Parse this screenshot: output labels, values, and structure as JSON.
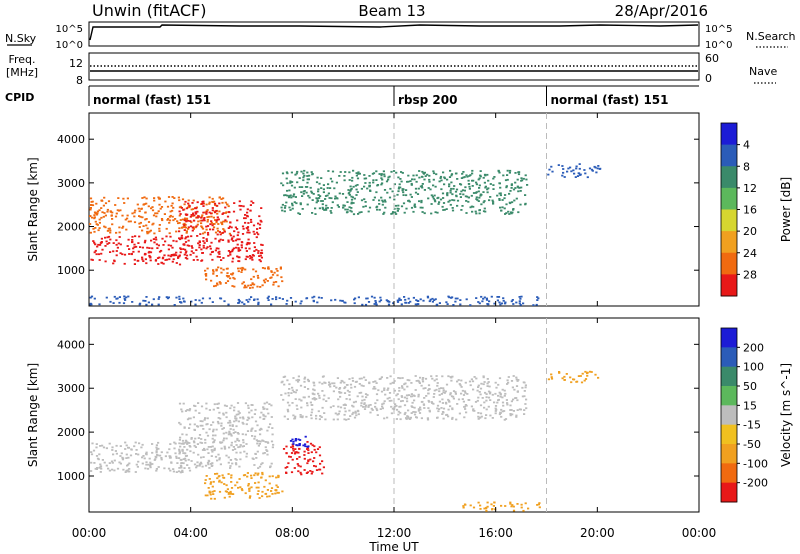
{
  "header": {
    "station": "Unwin (fitACF)",
    "beam": "Beam 13",
    "date": "28/Apr/2016"
  },
  "top_panels": {
    "nsky_label": "N.Sky",
    "nsearch_label": "N.Search",
    "noise_ticks": [
      "10^5",
      "10^0"
    ],
    "freq_label": "Freq.",
    "freq_unit": "[MHz]",
    "freq_ticks": [
      "12",
      "8"
    ],
    "nave_label": "Nave",
    "nave_ticks": [
      "60",
      "0"
    ],
    "cpid_label": "CPID"
  },
  "cpid_segments": [
    {
      "label": "normal (fast) 151",
      "start_hour": 0
    },
    {
      "label": "rbsp 200",
      "start_hour": 12
    },
    {
      "label": "normal (fast) 151",
      "start_hour": 18
    }
  ],
  "x_axis": {
    "label": "Time UT",
    "range_hours": [
      0,
      24
    ],
    "ticks": [
      {
        "hour": 0,
        "label": "00:00"
      },
      {
        "hour": 4,
        "label": "04:00"
      },
      {
        "hour": 8,
        "label": "08:00"
      },
      {
        "hour": 12,
        "label": "12:00"
      },
      {
        "hour": 16,
        "label": "16:00"
      },
      {
        "hour": 20,
        "label": "20:00"
      },
      {
        "hour": 24,
        "label": "00:00"
      }
    ]
  },
  "chart_data": [
    {
      "type": "heatmap",
      "quantity": "power",
      "ylabel": "Slant Range [km]",
      "ylim": [
        180,
        4600
      ],
      "yticks": [
        1000,
        2000,
        3000,
        4000
      ],
      "xlim": [
        0,
        24
      ],
      "colorbar": {
        "label": "Power [dB]",
        "tick_labels": [
          "4",
          "8",
          "12",
          "16",
          "20",
          "24",
          "28"
        ],
        "colors": [
          "#1c1cd6",
          "#2b5cb8",
          "#3a8a6a",
          "#5cb85c",
          "#d6d630",
          "#f0a020",
          "#f06a10",
          "#e81818"
        ]
      },
      "features": [
        {
          "name": "near-range band",
          "hours": [
            0,
            17.7
          ],
          "range_km": [
            220,
            420
          ],
          "color": "#2b5cb8"
        },
        {
          "name": "early band low",
          "hours": [
            0,
            3.8
          ],
          "range_km": [
            1150,
            1800
          ],
          "color": "#e81818"
        },
        {
          "name": "early band upper",
          "hours": [
            0,
            5.5
          ],
          "range_km": [
            1850,
            2700
          ],
          "color": "#f06a10"
        },
        {
          "name": "rising arc",
          "hours": [
            3.5,
            6.8
          ],
          "range_km": [
            1200,
            2600
          ],
          "color": "#e81818"
        },
        {
          "name": "lower arc",
          "hours": [
            4.5,
            7.6
          ],
          "range_km": [
            600,
            1100
          ],
          "color": "#f06a10"
        },
        {
          "name": "ridge",
          "hours": [
            7.5,
            17.2
          ],
          "range_km": [
            2300,
            3300
          ],
          "color": "#3a8a6a"
        },
        {
          "name": "post-18UT echoes",
          "hours": [
            18,
            20.1
          ],
          "range_km": [
            3150,
            3450
          ],
          "color": "#2b5cb8"
        }
      ]
    },
    {
      "type": "heatmap",
      "quantity": "velocity",
      "ylabel": "Slant Range [km]",
      "ylim": [
        180,
        4600
      ],
      "yticks": [
        1000,
        2000,
        3000,
        4000
      ],
      "xlim": [
        0,
        24
      ],
      "colorbar": {
        "label": "Velocity [m s^-1]",
        "tick_labels": [
          "200",
          "100",
          "50",
          "15",
          "-15",
          "-50",
          "-100",
          "-200"
        ],
        "colors": [
          "#1c1cd6",
          "#2b5cb8",
          "#3a8a6a",
          "#5cb85c",
          "#bdbdbd",
          "#f0c020",
          "#f0a020",
          "#f06a10",
          "#e81818"
        ]
      },
      "features": [
        {
          "name": "ground scatter early",
          "hours": [
            0,
            4.0
          ],
          "range_km": [
            1100,
            1800
          ],
          "color": "#bdbdbd"
        },
        {
          "name": "ground scatter arc",
          "hours": [
            3.5,
            7.2
          ],
          "range_km": [
            1200,
            2700
          ],
          "color": "#bdbdbd"
        },
        {
          "name": "ridge ground scatter",
          "hours": [
            7.5,
            17.2
          ],
          "range_km": [
            2300,
            3300
          ],
          "color": "#bdbdbd"
        },
        {
          "name": "negative velocity band",
          "hours": [
            4.5,
            7.6
          ],
          "range_km": [
            500,
            1100
          ],
          "color": "#f0a020"
        },
        {
          "name": "strong negative flow",
          "hours": [
            7.6,
            9.2
          ],
          "range_km": [
            1050,
            1800
          ],
          "color": "#e81818"
        },
        {
          "name": "positive flow",
          "hours": [
            7.9,
            8.6
          ],
          "range_km": [
            1600,
            2000
          ],
          "color": "#1c1cd6"
        },
        {
          "name": "near-range negative",
          "hours": [
            14.5,
            17.7
          ],
          "range_km": [
            220,
            420
          ],
          "color": "#f0a020"
        },
        {
          "name": "post-18UT negative",
          "hours": [
            18,
            20.0
          ],
          "range_km": [
            3150,
            3400
          ],
          "color": "#f0a020"
        }
      ]
    }
  ]
}
